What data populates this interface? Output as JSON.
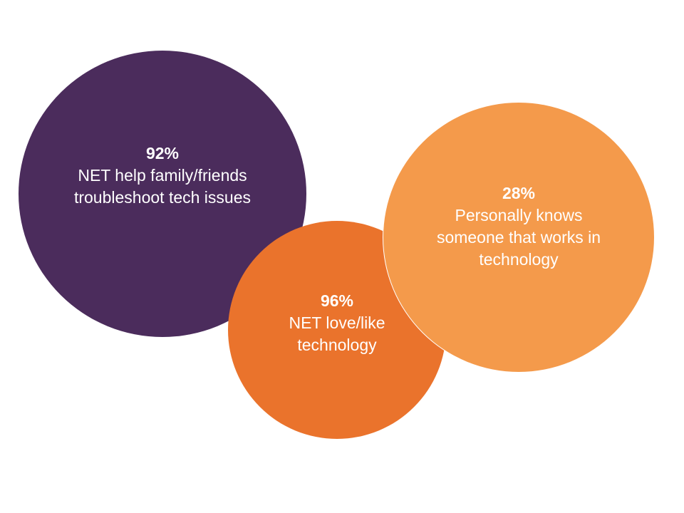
{
  "bubbles": [
    {
      "percent": "92%",
      "label": "NET help family/friends troubleshoot tech issues",
      "color": "#4b2c5c"
    },
    {
      "percent": "96%",
      "label": "NET love/like technology",
      "color": "#ea732c"
    },
    {
      "percent": "28%",
      "label": "Personally knows someone that works in technology",
      "color": "#f49a4b"
    }
  ]
}
